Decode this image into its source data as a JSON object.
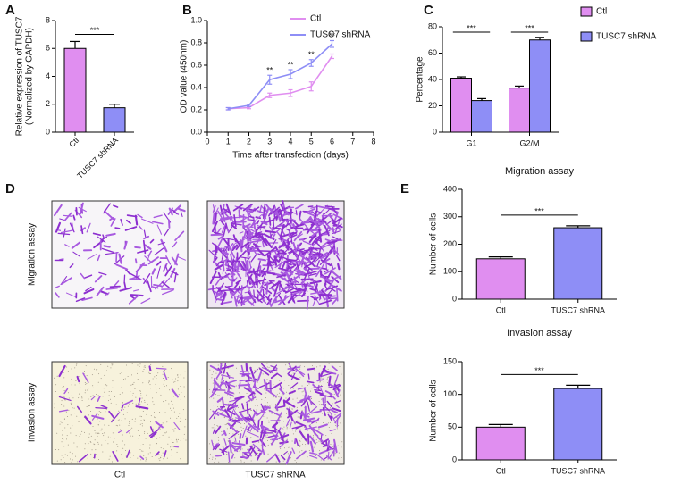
{
  "chart_data": [
    {
      "panel": "A",
      "type": "bar",
      "ylabel": [
        "Relative expression of TUSC7",
        "(Normalized by GAPDH)"
      ],
      "categories": [
        "Ctl",
        "TUSC7 shRNA"
      ],
      "values": [
        6.0,
        1.75
      ],
      "errors": [
        0.5,
        0.25
      ],
      "colors": [
        "#e08ef0",
        "#8e8ef6"
      ],
      "ylim": [
        0,
        8
      ],
      "yticks": [
        0,
        2,
        4,
        6,
        8
      ],
      "annotations": [
        "***"
      ]
    },
    {
      "panel": "B",
      "type": "line",
      "xlabel": "Time after transfection (days)",
      "ylabel": "OD value (450nm)",
      "x": [
        1,
        2,
        3,
        4,
        5,
        6
      ],
      "series": [
        {
          "name": "Ctl",
          "color": "#e08ef0",
          "values": [
            0.21,
            0.22,
            0.33,
            0.35,
            0.41,
            0.68
          ],
          "errors": [
            0.01,
            0.01,
            0.02,
            0.03,
            0.04,
            0.02
          ]
        },
        {
          "name": "TUSC7 shRNA",
          "color": "#8e8ef6",
          "values": [
            0.21,
            0.24,
            0.47,
            0.52,
            0.62,
            0.79
          ],
          "errors": [
            0.01,
            0.01,
            0.04,
            0.04,
            0.03,
            0.03
          ]
        }
      ],
      "xlim": [
        0,
        8
      ],
      "xticks": [
        0,
        1,
        2,
        3,
        4,
        5,
        6,
        7,
        8
      ],
      "ylim": [
        0,
        1
      ],
      "yticks": [
        {
          "value": 0,
          "label": "0.0"
        },
        {
          "value": 0.2,
          "label": "0.2"
        },
        {
          "value": 0.4,
          "label": "0.4"
        },
        {
          "value": 0.6,
          "label": "0.6"
        },
        {
          "value": 0.8,
          "label": "0.8"
        },
        {
          "value": 1,
          "label": "1.0"
        }
      ],
      "annotations": [
        {
          "x": 3,
          "text": "**"
        },
        {
          "x": 4,
          "text": "**"
        },
        {
          "x": 5,
          "text": "**"
        },
        {
          "x": 6,
          "text": "**"
        }
      ]
    },
    {
      "panel": "C",
      "type": "bar",
      "ylabel": "Percentage",
      "categories": [
        "G1",
        "G2/M"
      ],
      "series": [
        {
          "name": "Ctl",
          "color": "#e08ef0",
          "values": [
            41,
            33.5
          ],
          "errors": [
            1,
            1.5
          ]
        },
        {
          "name": "TUSC7 shRNA",
          "color": "#8e8ef6",
          "values": [
            24,
            70
          ],
          "errors": [
            1.5,
            2
          ]
        }
      ],
      "ylim": [
        0,
        80
      ],
      "yticks": [
        0,
        20,
        40,
        60,
        80
      ],
      "annotations": [
        "***",
        "***"
      ]
    },
    {
      "panel": "E",
      "type": "bar",
      "title": "Migration assay",
      "ylabel": "Number of cells",
      "categories": [
        "Ctl",
        "TUSC7 shRNA"
      ],
      "values": [
        147,
        260
      ],
      "errors": [
        7,
        7
      ],
      "colors": [
        "#e08ef0",
        "#8e8ef6"
      ],
      "ylim": [
        0,
        400
      ],
      "yticks": [
        0,
        100,
        200,
        300,
        400
      ],
      "annotations": [
        "***"
      ]
    },
    {
      "type": "bar",
      "title": "Invasion assay",
      "ylabel": "Number of cells",
      "categories": [
        "Ctl",
        "TUSC7 shRNA"
      ],
      "values": [
        50,
        109
      ],
      "errors": [
        4,
        5
      ],
      "colors": [
        "#e08ef0",
        "#8e8ef6"
      ],
      "ylim": [
        0,
        150
      ],
      "yticks": [
        0,
        50,
        100,
        150
      ],
      "annotations": [
        "***"
      ]
    }
  ],
  "images": {
    "panel": "D",
    "row_labels": [
      "Migration assay",
      "Invasion assay"
    ],
    "column_labels": [
      "Ctl",
      "TUSC7 shRNA"
    ]
  }
}
